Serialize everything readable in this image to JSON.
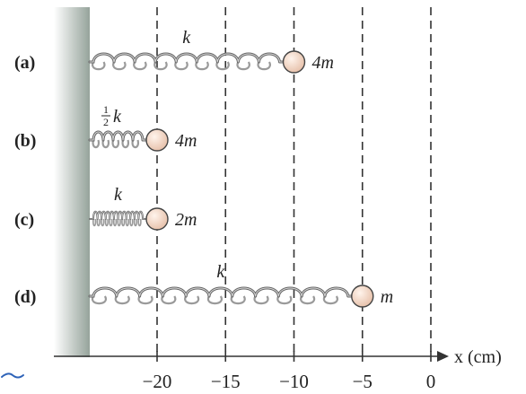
{
  "axis": {
    "label": "x (cm)",
    "ticks": [
      {
        "value": -20,
        "text": "−20"
      },
      {
        "value": -15,
        "text": "−15"
      },
      {
        "value": -10,
        "text": "−10"
      },
      {
        "value": -5,
        "text": "−5"
      },
      {
        "value": 0,
        "text": "0"
      }
    ]
  },
  "cases": [
    {
      "id": "a",
      "label": "(a)",
      "k_label": "k",
      "k_fraction": "",
      "mass_label": "4m",
      "x_cm": -10,
      "coils": 9,
      "compressed": false
    },
    {
      "id": "b",
      "label": "(b)",
      "k_label": "k",
      "k_fraction": "1/2",
      "mass_label": "4m",
      "x_cm": -20,
      "coils": 5,
      "compressed": false
    },
    {
      "id": "c",
      "label": "(c)",
      "k_label": "k",
      "k_fraction": "",
      "mass_label": "2m",
      "x_cm": -20,
      "coils": 12,
      "compressed": true
    },
    {
      "id": "d",
      "label": "(d)",
      "k_label": "k",
      "k_fraction": "",
      "mass_label": "m",
      "x_cm": -5,
      "coils": 11,
      "compressed": false
    }
  ],
  "colors": {
    "wall": "#a9b5ae",
    "spring": "#666666",
    "mass_fill": "#f1d5c5",
    "mass_stroke": "#444444",
    "dash": "#333333",
    "axis": "#333333",
    "mark": "#2e63b8"
  }
}
